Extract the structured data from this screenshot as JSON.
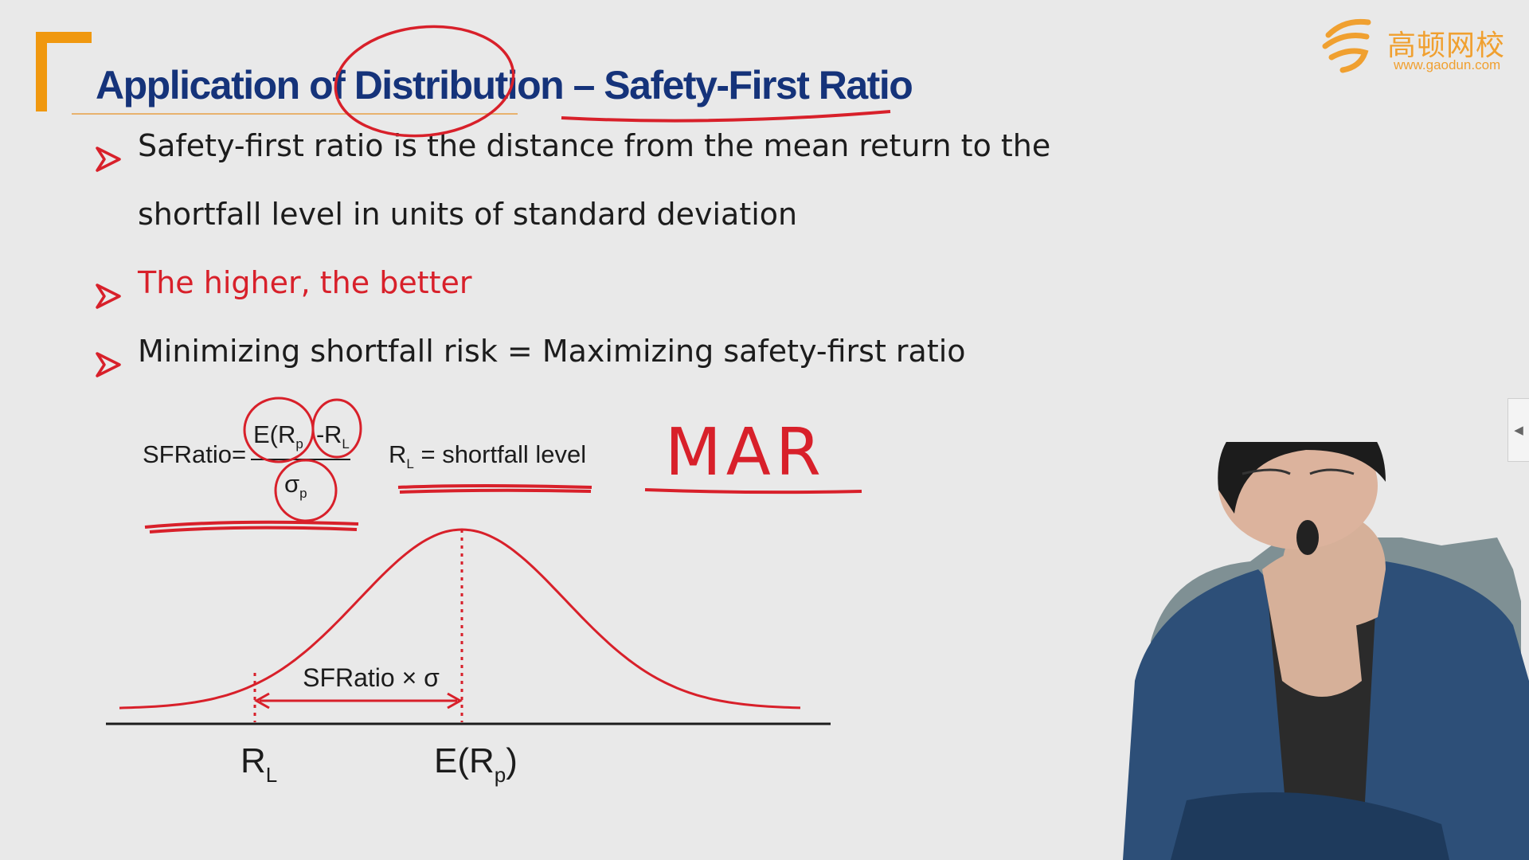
{
  "slide": {
    "title": "Application of Distribution – Safety-First Ratio",
    "logo": {
      "brand_cn": "高顿网校",
      "url": "www.gaodun.com"
    },
    "bullets": [
      {
        "lines": [
          "Safety-first ratio is the distance from the mean return to the",
          "shortfall level in units of standard deviation"
        ]
      },
      {
        "lines": [
          "The higher, the better"
        ],
        "color": "#d8202a"
      },
      {
        "lines": [
          "Minimizing shortfall risk = Maximizing safety-first ratio"
        ]
      }
    ],
    "formula": {
      "lhs": "SFRatio=",
      "numerator_a": "E(R",
      "numerator_a_sub": "p",
      "numerator_minus": "-",
      "numerator_b": "R",
      "numerator_b_sub": "L",
      "denominator": "σ",
      "denominator_sub": "p",
      "definition_sym": "R",
      "definition_sub": "L",
      "definition_text": " = shortfall level"
    },
    "diagram": {
      "arrow_label": "SFRatio × σ",
      "left_axis_label": "R",
      "left_axis_sub": "L",
      "right_axis_label": "E(R",
      "right_axis_sub": "p",
      "right_axis_close": ")"
    }
  },
  "annotations": {
    "handwritten": "MAR",
    "ink_color": "#d8202a"
  },
  "colors": {
    "title": "#15337a",
    "accent_orange": "#f0980f",
    "red": "#d8202a",
    "background": "#e9e9e9"
  }
}
